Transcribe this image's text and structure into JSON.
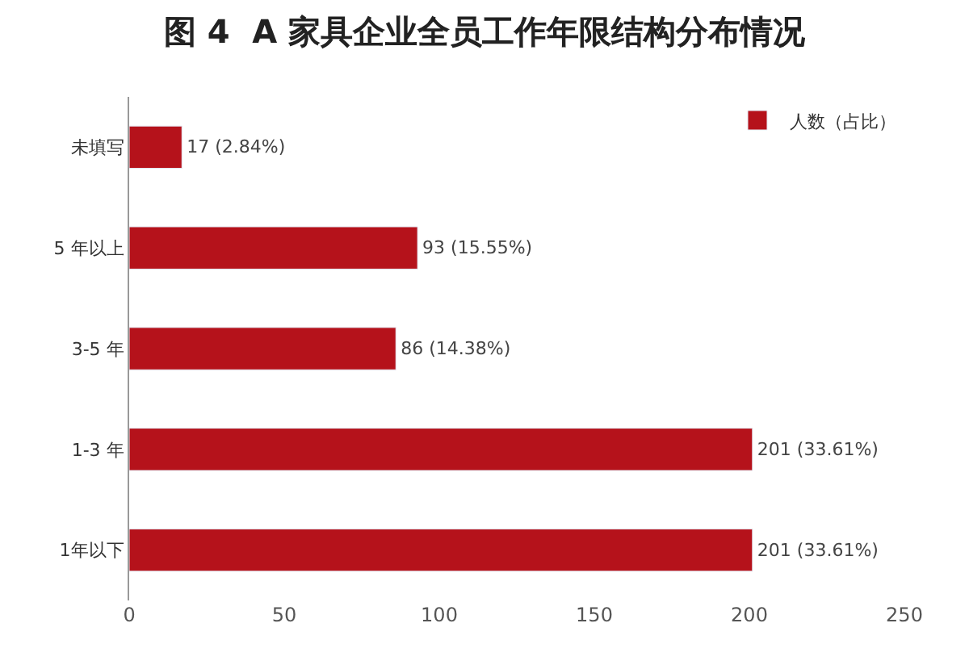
{
  "chart_data": {
    "type": "bar",
    "orientation": "horizontal",
    "title": "图 4  A 家具企业全员工作年限结构分布情况",
    "categories": [
      "未填写",
      "5 年以上",
      "3-5 年",
      "1-3 年",
      "1年以下"
    ],
    "series": [
      {
        "name": "人数（占比）",
        "color": "#b5121b",
        "values": [
          17,
          93,
          86,
          201,
          201
        ],
        "value_labels": [
          "17 (2.84%)",
          "93 (15.55%)",
          "86 (14.38%)",
          "201 (33.61%)",
          "201 (33.61%)"
        ]
      }
    ],
    "xlim": [
      0,
      250
    ],
    "xticks": [
      0,
      50,
      100,
      150,
      200,
      250
    ],
    "legend": "top right"
  }
}
